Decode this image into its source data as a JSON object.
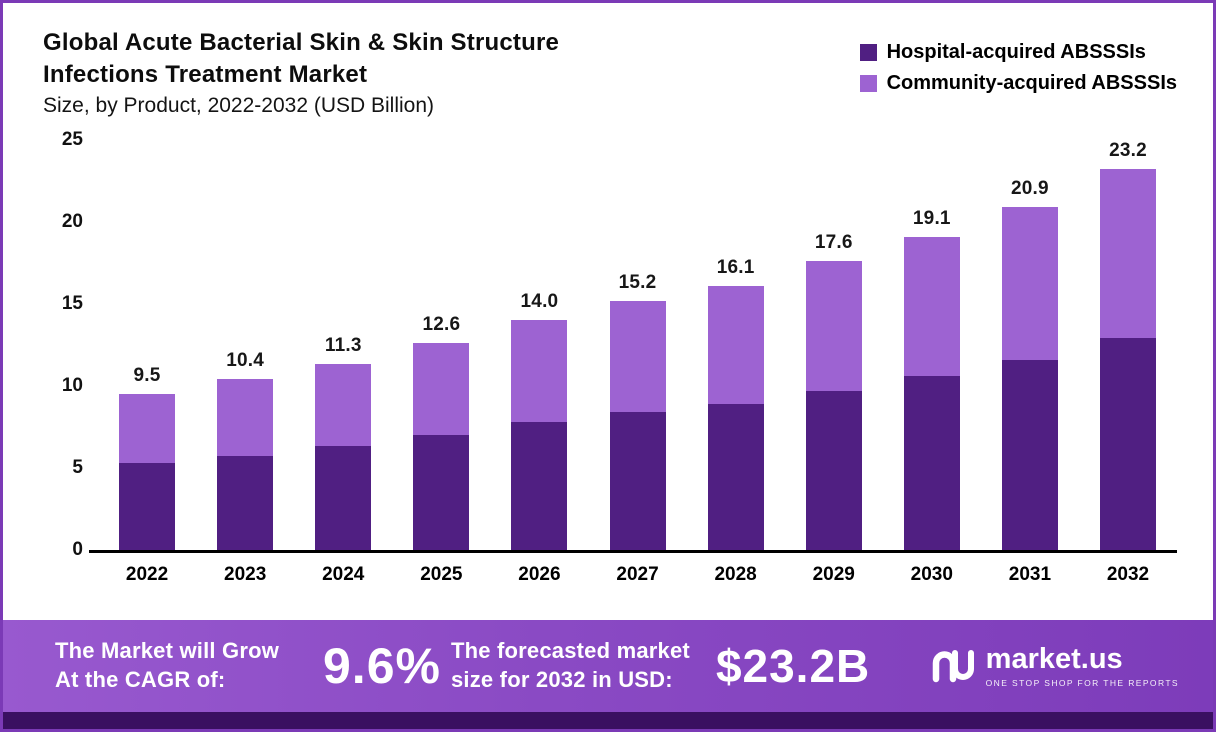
{
  "header": {
    "title_line1": "Global Acute Bacterial Skin & Skin  Structure",
    "title_line2": "Infections Treatment Market",
    "subtitle": "Size, by Product, 2022-2032 (USD Billion)"
  },
  "legend": {
    "items": [
      {
        "label": "Hospital-acquired ABSSSIs",
        "color": "#501f82"
      },
      {
        "label": "Community-acquired ABSSSIs",
        "color": "#9d63d2"
      }
    ]
  },
  "chart_data": {
    "type": "bar",
    "stacked": true,
    "title": "Global Acute Bacterial Skin & Skin Structure Infections Treatment Market Size, by Product, 2022-2032 (USD Billion)",
    "unit": "USD Billion",
    "categories": [
      "2022",
      "2023",
      "2024",
      "2025",
      "2026",
      "2027",
      "2028",
      "2029",
      "2030",
      "2031",
      "2032"
    ],
    "series": [
      {
        "name": "Hospital-acquired ABSSSIs",
        "color": "#501f82",
        "values": [
          5.3,
          5.7,
          6.3,
          7.0,
          7.8,
          8.4,
          8.9,
          9.7,
          10.6,
          11.6,
          12.9
        ]
      },
      {
        "name": "Community-acquired ABSSSIs",
        "color": "#9d63d2",
        "values": [
          4.2,
          4.7,
          5.0,
          5.6,
          6.2,
          6.8,
          7.2,
          7.9,
          8.5,
          9.3,
          10.3
        ]
      }
    ],
    "totals": [
      9.5,
      10.4,
      11.3,
      12.6,
      14.0,
      15.2,
      16.1,
      17.6,
      19.1,
      20.9,
      23.2
    ],
    "total_labels": [
      "9.5",
      "10.4",
      "11.3",
      "12.6",
      "14.0",
      "15.2",
      "16.1",
      "17.6",
      "19.1",
      "20.9",
      "23.2"
    ],
    "ylim": [
      0,
      25
    ],
    "yticks": [
      0,
      5,
      10,
      15,
      20,
      25
    ],
    "grid": false,
    "legend_position": "top-right"
  },
  "banner": {
    "left_line1": "The Market will Grow",
    "left_line2": "At the CAGR of:",
    "cagr": "9.6%",
    "mid_line1": "The forecasted market",
    "mid_line2": "size for 2032 in USD:",
    "value": "$23.2B",
    "brand": "market.us",
    "tagline": "ONE STOP SHOP FOR THE REPORTS"
  },
  "colors": {
    "hospital": "#501f82",
    "community": "#9d63d2",
    "banner_start": "#9859cf",
    "banner_end": "#7d3cba",
    "bottom_strip": "#3a1061",
    "page_border": "#7b3ab6",
    "axis": "#000000"
  }
}
